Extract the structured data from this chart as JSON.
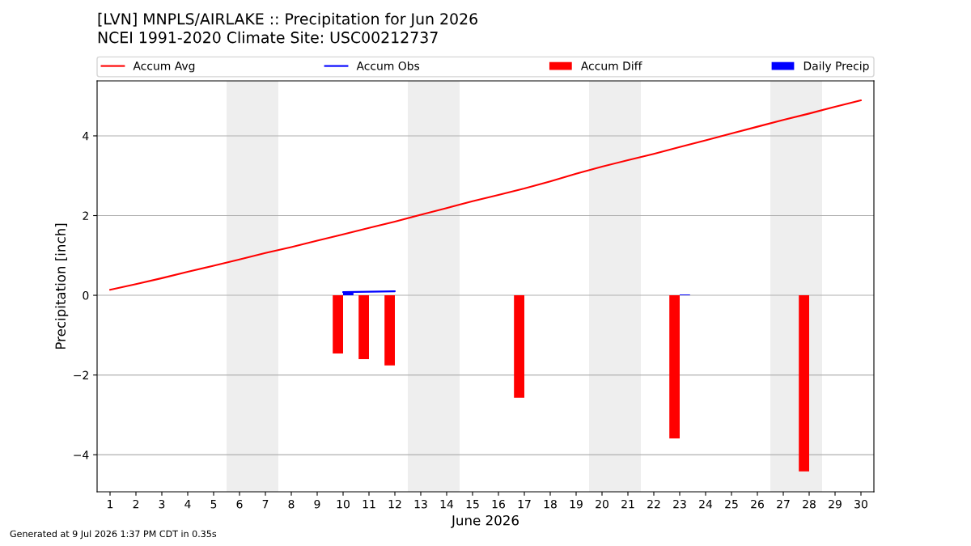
{
  "chart_data": {
    "type": "line",
    "title": "[LVN] MNPLS/AIRLAKE :: Precipitation for Jun 2026",
    "subtitle": "NCEI 1991-2020 Climate Site: USC00212737",
    "xlabel": "June 2026",
    "ylabel": "Precipitation [inch]",
    "annotations": [
      "Generated at 9 Jul 2026 1:37 PM CDT in 0.35s"
    ],
    "x": [
      1,
      2,
      3,
      4,
      5,
      6,
      7,
      8,
      9,
      10,
      11,
      12,
      13,
      14,
      15,
      16,
      17,
      18,
      19,
      20,
      21,
      22,
      23,
      24,
      25,
      26,
      27,
      28,
      29,
      30
    ],
    "series": [
      {
        "name": "Accum Avg",
        "color": "#ff0000",
        "values": [
          0.14,
          0.28,
          0.43,
          0.59,
          0.74,
          0.9,
          1.06,
          1.21,
          1.37,
          1.53,
          1.69,
          1.85,
          2.02,
          2.19,
          2.36,
          2.52,
          2.68,
          2.86,
          3.05,
          3.23,
          3.39,
          3.55,
          3.72,
          3.89,
          4.06,
          4.23,
          4.4,
          4.56,
          4.73,
          4.89
        ]
      },
      {
        "name": "Accum Obs",
        "color": "#0000ff",
        "values": [
          null,
          null,
          null,
          null,
          null,
          null,
          null,
          null,
          null,
          0.08,
          0.09,
          0.1,
          null,
          null,
          null,
          null,
          null,
          null,
          null,
          null,
          null,
          null,
          null,
          null,
          null,
          null,
          null,
          null,
          null,
          null
        ]
      },
      {
        "name": "Accum Diff",
        "type": "bar",
        "color": "#ff0000",
        "values": [
          null,
          null,
          null,
          null,
          null,
          null,
          null,
          null,
          null,
          -1.46,
          -1.6,
          -1.76,
          null,
          null,
          null,
          null,
          -2.57,
          null,
          null,
          null,
          null,
          null,
          -3.59,
          null,
          null,
          null,
          null,
          -4.42,
          null,
          null
        ]
      },
      {
        "name": "Daily Precip",
        "type": "bar",
        "color": "#0000ff",
        "values": [
          null,
          null,
          null,
          null,
          null,
          null,
          null,
          null,
          null,
          0.08,
          null,
          null,
          null,
          null,
          null,
          null,
          null,
          null,
          null,
          null,
          null,
          null,
          0.02,
          null,
          null,
          null,
          null,
          null,
          null,
          null
        ]
      }
    ],
    "bands": [
      {
        "axis": "x",
        "from": 5.5,
        "to": 7.5,
        "color": "#eeeeee"
      },
      {
        "axis": "x",
        "from": 12.5,
        "to": 14.5,
        "color": "#eeeeee"
      },
      {
        "axis": "x",
        "from": 19.5,
        "to": 21.5,
        "color": "#eeeeee"
      },
      {
        "axis": "x",
        "from": 26.5,
        "to": 28.5,
        "color": "#eeeeee"
      }
    ],
    "xlim": [
      0.5,
      30.5
    ],
    "xticks": [
      1,
      2,
      3,
      4,
      5,
      6,
      7,
      8,
      9,
      10,
      11,
      12,
      13,
      14,
      15,
      16,
      17,
      18,
      19,
      20,
      21,
      22,
      23,
      24,
      25,
      26,
      27,
      28,
      29,
      30
    ],
    "ylim": [
      -4.93,
      5.38
    ],
    "yticks": [
      {
        "value": -4,
        "label": "−4"
      },
      {
        "value": -2,
        "label": "−2"
      },
      0,
      2,
      4
    ],
    "grid": "y",
    "legend": "top"
  }
}
